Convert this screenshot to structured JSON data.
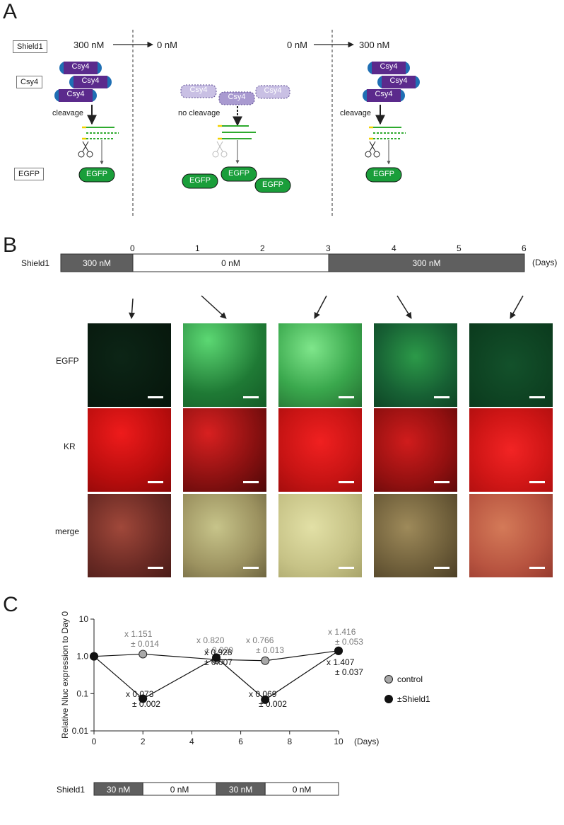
{
  "panel_a": {
    "letter": "A",
    "row_labels": {
      "shield": "Shield1",
      "csy4": "Csy4",
      "egfp": "EGFP"
    },
    "transition_1": {
      "from": "300 nM",
      "to": "0 nM"
    },
    "transition_2": {
      "from": "0 nM",
      "to": "300 nM"
    },
    "csy4_label": "Csy4",
    "egfp_label": "EGFP",
    "cleavage": "cleavage",
    "no_cleavage": "no cleavage"
  },
  "panel_b": {
    "letter": "B",
    "days_ticks": [
      "0",
      "1",
      "2",
      "3",
      "4",
      "5",
      "6"
    ],
    "days_unit": "(Days)",
    "shield_label": "Shield1",
    "bar_segments": [
      "300 nM",
      "0 nM",
      "300 nM"
    ],
    "row_labels": [
      "EGFP",
      "KR",
      "merge"
    ]
  },
  "panel_c": {
    "letter": "C",
    "chart_data": {
      "type": "line",
      "ylabel": "Relative Nluc expression to Day 0",
      "xlabel": "(Days)",
      "yscale": "log",
      "ylim": [
        0.01,
        10
      ],
      "xlim": [
        0,
        10
      ],
      "x_ticks": [
        "0",
        "2",
        "4",
        "6",
        "8",
        "10"
      ],
      "y_ticks": [
        "10",
        "1.0",
        "0.1",
        "0.01"
      ],
      "legend": "right",
      "series": [
        {
          "name": "control",
          "color": "#a8a8a8",
          "x": [
            0,
            2,
            5,
            7,
            10
          ],
          "y": [
            1.0,
            1.151,
            0.82,
            0.766,
            1.416
          ]
        },
        {
          "name": "±Shield1",
          "color": "#111111",
          "x": [
            0,
            2,
            5,
            7,
            10
          ],
          "y": [
            1.0,
            0.073,
            0.928,
            0.069,
            1.407
          ]
        }
      ],
      "annotations": {
        "control": [
          {
            "l1": "x 1.151",
            "l2": "± 0.014"
          },
          {
            "l1": "x 0.820",
            "l2": "± 0.020"
          },
          {
            "l1": "x 0.766",
            "l2": "± 0.013"
          },
          {
            "l1": "x 1.416",
            "l2": "± 0.053"
          }
        ],
        "shield": [
          {
            "l1": "x 0.073",
            "l2": "± 0.002"
          },
          {
            "l1": "x 0.928",
            "l2": "± 0.007"
          },
          {
            "l1": "x 0.069",
            "l2": "± 0.002"
          },
          {
            "l1": "x 1.407",
            "l2": "± 0.037"
          }
        ]
      }
    },
    "shield_label": "Shield1",
    "bar_segments": [
      "30 nM",
      "0 nM",
      "30 nM",
      "0 nM"
    ]
  },
  "colors": {
    "csy4_dark": "#5b2a8c",
    "csy4_light": "#a99ad0",
    "egfp": "#1a9e3a",
    "strand_green": "#2eaa2e",
    "bar_grey": "#5f5f5f",
    "arrow": "#333333"
  }
}
